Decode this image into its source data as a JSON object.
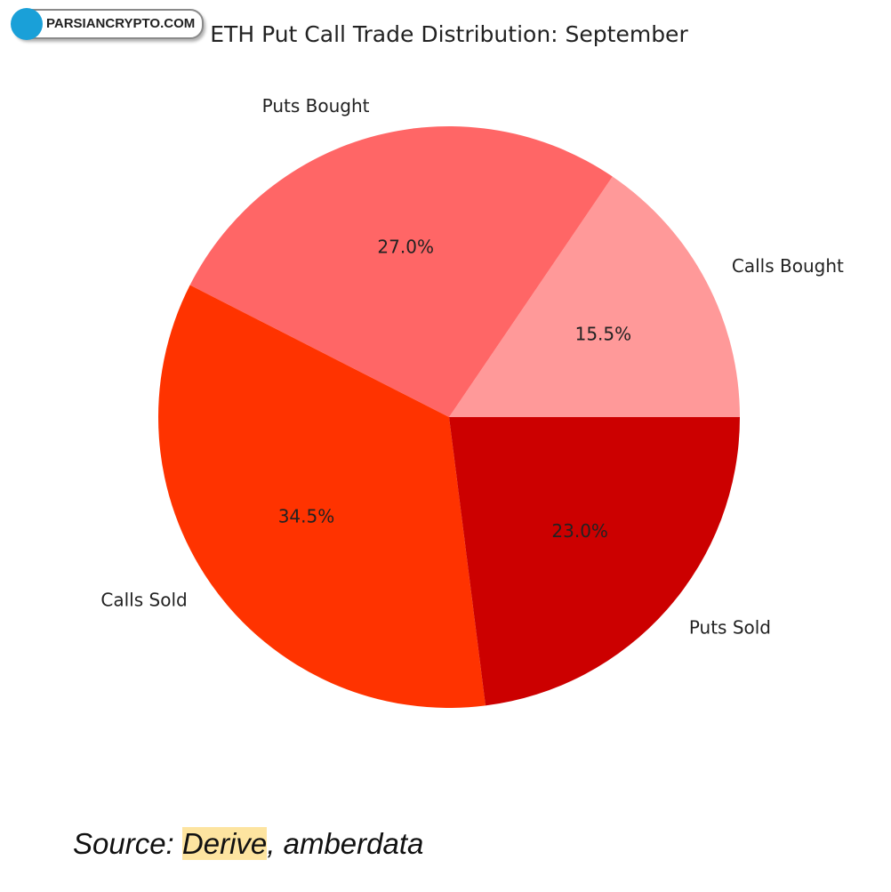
{
  "watermark": "PARSIANCRYPTO.COM",
  "chart_data": {
    "type": "pie",
    "title": "ETH Put Call Trade Distribution: September",
    "categories": [
      "Calls Bought",
      "Puts Bought",
      "Calls Sold",
      "Puts Sold"
    ],
    "values": [
      15.5,
      27.0,
      34.5,
      23.0
    ],
    "value_labels": [
      "15.5%",
      "27.0%",
      "34.5%",
      "23.0%"
    ],
    "colors": [
      "#ff9999",
      "#ff6666",
      "#ff3300",
      "#cc0000"
    ]
  },
  "source": {
    "prefix": "Source:",
    "highlight": "Derive",
    "suffix": ", amberdata"
  }
}
